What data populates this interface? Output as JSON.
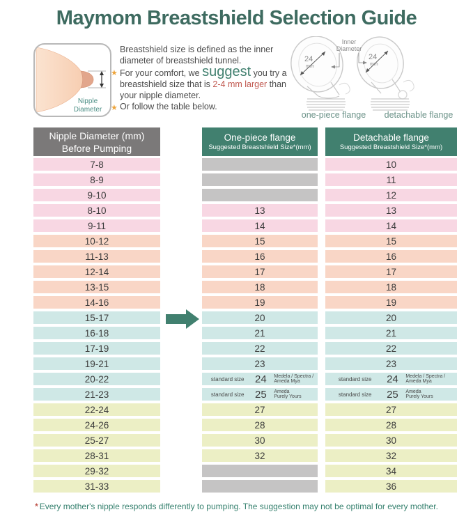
{
  "title": "Maymom Breastshield Selection Guide",
  "colors": {
    "title_green": "#3e6b60",
    "teal": "#41806f",
    "header_gray": "#7b7979",
    "header_teal": "#41806f",
    "pink": "#f8d7e3",
    "peach": "#f9d6c6",
    "blue": "#cfe8e6",
    "yellow": "#ecefc5",
    "gray_cell": "#c5c4c4",
    "accent_red": "#c0584f",
    "star_orange": "#eda43b",
    "footer_green": "#35806e"
  },
  "info": {
    "diagram_label": [
      "Nipple",
      "Diameter"
    ],
    "star_icon": "★",
    "p1": "Breastshield size is defined as the inner diameter of breastshield tunnel.",
    "p2_before": "For your comfort, we ",
    "p2_suggest": "suggest",
    "p2_mid": " you try a breastshield size that is ",
    "p2_highlight": "2-4 mm larger",
    "p2_after": " than your nipple diameter.",
    "p3": "Or follow the table below."
  },
  "flanges": {
    "inner_label": [
      "Inner",
      "Diameter"
    ],
    "left": {
      "size": "24",
      "unit": "mm",
      "label": "one-piece flange"
    },
    "right": {
      "size": "24",
      "unit": "mm",
      "label": "detachable flange"
    }
  },
  "table": {
    "col1_header_line1": "Nipple Diameter (mm)",
    "col1_header_line2": "Before Pumping",
    "col2_header_title": "One-piece flange",
    "col2_header_subtitle": "Suggested Breastshield Size*(mm)",
    "col3_header_title": "Detachable flange",
    "col3_header_subtitle": "Suggested Breastshield Size*(mm)"
  },
  "chart_data": {
    "type": "table",
    "title": "Maymom Breastshield Selection Guide",
    "columns": [
      "Nipple Diameter (mm) Before Pumping",
      "One-piece flange Suggested Breastshield Size*(mm)",
      "Detachable flange Suggested Breastshield Size*(mm)"
    ],
    "rows": [
      {
        "range": "7-8",
        "group": "pink",
        "onepiece": null,
        "detachable": "10"
      },
      {
        "range": "8-9",
        "group": "pink",
        "onepiece": null,
        "detachable": "11"
      },
      {
        "range": "9-10",
        "group": "pink",
        "onepiece": null,
        "detachable": "12"
      },
      {
        "range": "8-10",
        "group": "pink",
        "onepiece": "13",
        "detachable": "13"
      },
      {
        "range": "9-11",
        "group": "pink",
        "onepiece": "14",
        "detachable": "14"
      },
      {
        "range": "10-12",
        "group": "peach",
        "onepiece": "15",
        "detachable": "15"
      },
      {
        "range": "11-13",
        "group": "peach",
        "onepiece": "16",
        "detachable": "16"
      },
      {
        "range": "12-14",
        "group": "peach",
        "onepiece": "17",
        "detachable": "17"
      },
      {
        "range": "13-15",
        "group": "peach",
        "onepiece": "18",
        "detachable": "18"
      },
      {
        "range": "14-16",
        "group": "peach",
        "onepiece": "19",
        "detachable": "19"
      },
      {
        "range": "15-17",
        "group": "blue",
        "onepiece": "20",
        "detachable": "20"
      },
      {
        "range": "16-18",
        "group": "blue",
        "onepiece": "21",
        "detachable": "21"
      },
      {
        "range": "17-19",
        "group": "blue",
        "onepiece": "22",
        "detachable": "22"
      },
      {
        "range": "19-21",
        "group": "blue",
        "onepiece": "23",
        "detachable": "23"
      },
      {
        "range": "20-22",
        "group": "blue",
        "onepiece": {
          "prefix": "standard size",
          "value": "24",
          "brands": [
            "Medela / Spectra /",
            "Ameda Mya"
          ]
        },
        "detachable": {
          "prefix": "standard size",
          "value": "24",
          "brands": [
            "Medela / Spectra /",
            "Ameda Mya"
          ]
        }
      },
      {
        "range": "21-23",
        "group": "blue",
        "onepiece": {
          "prefix": "standard size",
          "value": "25",
          "brands": [
            "Ameda",
            "Purely Yours"
          ]
        },
        "detachable": {
          "prefix": "standard size",
          "value": "25",
          "brands": [
            "Ameda",
            "Purely Yours"
          ]
        }
      },
      {
        "range": "22-24",
        "group": "yellow",
        "onepiece": "27",
        "detachable": "27"
      },
      {
        "range": "24-26",
        "group": "yellow",
        "onepiece": "28",
        "detachable": "28"
      },
      {
        "range": "25-27",
        "group": "yellow",
        "onepiece": "30",
        "detachable": "30"
      },
      {
        "range": "28-31",
        "group": "yellow",
        "onepiece": "32",
        "detachable": "32"
      },
      {
        "range": "29-32",
        "group": "yellow",
        "onepiece": null,
        "detachable": "34"
      },
      {
        "range": "31-33",
        "group": "yellow",
        "onepiece": null,
        "detachable": "36"
      }
    ]
  },
  "footer": {
    "asterisk": "*",
    "text": "Every mother's nipple responds differently to pumping. The suggestion may not be optimal for every mother."
  }
}
